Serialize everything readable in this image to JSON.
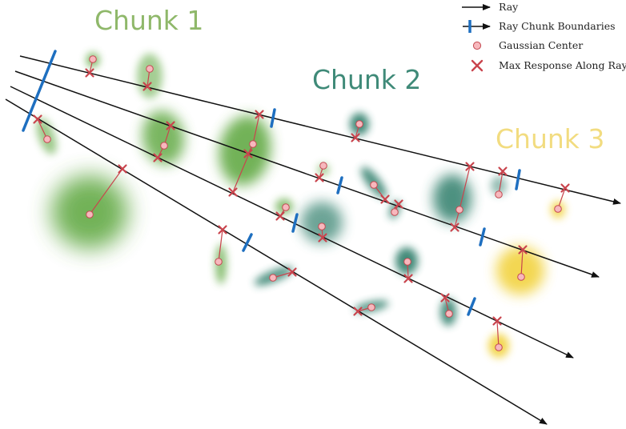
{
  "colors": {
    "ray": "#111111",
    "boundary": "#1e6fc0",
    "gaussian_center_fill": "#f7b8bd",
    "gaussian_center_stroke": "#c44a52",
    "max_response": "#c9444d",
    "chunk1": "#8fb86a",
    "chunk2": "#3f8a78",
    "chunk3": "#f2dc80"
  },
  "chunks": [
    {
      "label": "Chunk 1",
      "color": "#8fb86a"
    },
    {
      "label": "Chunk 2",
      "color": "#3f8a78"
    },
    {
      "label": "Chunk 3",
      "color": "#f2dc80"
    }
  ],
  "legend": {
    "ray": "Ray",
    "boundaries": "Ray Chunk Boundaries",
    "center": "Gaussian Center",
    "max_response": "Max Response Along Ray"
  }
}
